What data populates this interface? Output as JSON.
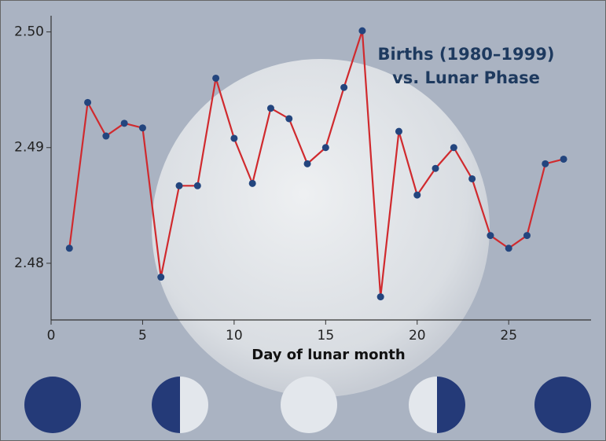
{
  "chart_data": {
    "type": "line",
    "title": [
      "Births (1980–1999)",
      "vs. Lunar Phase"
    ],
    "x_label": "Day of lunar month",
    "x": [
      1,
      2,
      3,
      4,
      5,
      6,
      7,
      8,
      9,
      10,
      11,
      12,
      13,
      14,
      15,
      16,
      17,
      18,
      19,
      20,
      21,
      22,
      23,
      24,
      25,
      26,
      27,
      28
    ],
    "series": [
      {
        "name": "Births",
        "line_color": "#d02a2e",
        "color": "#23457e",
        "values": [
          2.4813,
          2.4939,
          2.491,
          2.4921,
          2.4917,
          2.4788,
          2.4867,
          2.4867,
          2.496,
          2.4908,
          2.4869,
          2.4934,
          2.4925,
          2.4886,
          2.49,
          2.4952,
          2.5001,
          2.4771,
          2.4914,
          2.4859,
          2.4882,
          2.49,
          2.4873,
          2.4824,
          2.4813,
          2.4824,
          2.4886,
          2.489
        ]
      }
    ],
    "xlim": [
      0,
      29.5
    ],
    "xticks": [
      0,
      5,
      10,
      15,
      20,
      25
    ],
    "ylim": [
      2.4751,
      2.5014
    ],
    "yticks": [
      {
        "value": 2.5,
        "label": "2.50"
      },
      2.49,
      2.48
    ]
  }
}
